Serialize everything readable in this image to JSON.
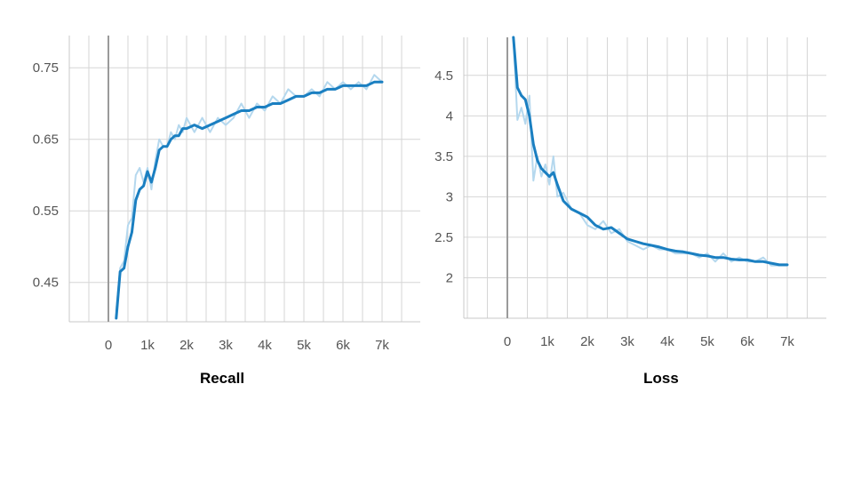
{
  "chart_data": [
    {
      "type": "line",
      "title": "Recall",
      "xlabel": "",
      "ylabel": "",
      "xlim": [
        -1000,
        8000
      ],
      "ylim": [
        0.395,
        0.795
      ],
      "xticks": [
        0,
        1000,
        2000,
        3000,
        4000,
        5000,
        6000,
        7000
      ],
      "xtick_labels": [
        "0",
        "1k",
        "2k",
        "3k",
        "4k",
        "5k",
        "6k",
        "7k"
      ],
      "yticks": [
        0.45,
        0.55,
        0.65,
        0.75
      ],
      "ytick_labels": [
        "0.45",
        "0.55",
        "0.65",
        "0.75"
      ],
      "grid": true,
      "colors": {
        "smoothed": "#1a7fc1",
        "raw": "#b5d8ee"
      },
      "series": [
        {
          "role": "raw",
          "x": [
            200,
            300,
            400,
            500,
            600,
            700,
            800,
            900,
            1000,
            1100,
            1200,
            1300,
            1400,
            1500,
            1600,
            1700,
            1800,
            1900,
            2000,
            2200,
            2400,
            2600,
            2800,
            3000,
            3200,
            3400,
            3600,
            3800,
            4000,
            4200,
            4400,
            4600,
            4800,
            5000,
            5200,
            5400,
            5600,
            5800,
            6000,
            6200,
            6400,
            6600,
            6800,
            7000
          ],
          "y": [
            0.41,
            0.47,
            0.48,
            0.53,
            0.54,
            0.6,
            0.61,
            0.59,
            0.61,
            0.58,
            0.62,
            0.65,
            0.64,
            0.64,
            0.66,
            0.65,
            0.67,
            0.66,
            0.68,
            0.66,
            0.68,
            0.66,
            0.68,
            0.67,
            0.68,
            0.7,
            0.68,
            0.7,
            0.69,
            0.71,
            0.7,
            0.72,
            0.71,
            0.71,
            0.72,
            0.71,
            0.73,
            0.72,
            0.73,
            0.72,
            0.73,
            0.72,
            0.74,
            0.73
          ]
        },
        {
          "role": "smoothed",
          "x": [
            200,
            300,
            400,
            500,
            600,
            700,
            800,
            900,
            1000,
            1100,
            1200,
            1300,
            1400,
            1500,
            1600,
            1700,
            1800,
            1900,
            2000,
            2200,
            2400,
            2600,
            2800,
            3000,
            3200,
            3400,
            3600,
            3800,
            4000,
            4200,
            4400,
            4600,
            4800,
            5000,
            5200,
            5400,
            5600,
            5800,
            6000,
            6200,
            6400,
            6600,
            6800,
            7000
          ],
          "y": [
            0.4,
            0.465,
            0.47,
            0.5,
            0.52,
            0.565,
            0.58,
            0.585,
            0.605,
            0.59,
            0.61,
            0.635,
            0.64,
            0.64,
            0.65,
            0.655,
            0.655,
            0.665,
            0.665,
            0.67,
            0.665,
            0.67,
            0.675,
            0.68,
            0.685,
            0.69,
            0.69,
            0.695,
            0.695,
            0.7,
            0.7,
            0.705,
            0.71,
            0.71,
            0.715,
            0.715,
            0.72,
            0.72,
            0.725,
            0.725,
            0.725,
            0.725,
            0.73,
            0.73
          ]
        }
      ]
    },
    {
      "type": "line",
      "title": "Loss",
      "xlabel": "",
      "ylabel": "",
      "xlim": [
        -1000,
        8000
      ],
      "ylim": [
        1.5,
        4.97
      ],
      "xticks": [
        0,
        1000,
        2000,
        3000,
        4000,
        5000,
        6000,
        7000
      ],
      "xtick_labels": [
        "0",
        "1k",
        "2k",
        "3k",
        "4k",
        "5k",
        "6k",
        "7k"
      ],
      "yticks": [
        2,
        2.5,
        3,
        3.5,
        4,
        4.5
      ],
      "ytick_labels": [
        "2",
        "2.5",
        "3",
        "3.5",
        "4",
        "4.5"
      ],
      "grid": true,
      "colors": {
        "smoothed": "#1a7fc1",
        "raw": "#b5d8ee"
      },
      "series": [
        {
          "role": "raw",
          "x": [
            150,
            250,
            350,
            450,
            550,
            650,
            750,
            850,
            950,
            1050,
            1150,
            1250,
            1400,
            1600,
            1800,
            2000,
            2200,
            2400,
            2600,
            2800,
            3000,
            3200,
            3400,
            3600,
            3800,
            4000,
            4200,
            4400,
            4600,
            4800,
            5000,
            5200,
            5400,
            5600,
            5800,
            6000,
            6200,
            6400,
            6600,
            6800,
            7000
          ],
          "y": [
            4.97,
            3.95,
            4.1,
            3.9,
            4.25,
            3.2,
            3.5,
            3.25,
            3.4,
            3.15,
            3.5,
            3.0,
            3.05,
            2.85,
            2.8,
            2.65,
            2.6,
            2.7,
            2.55,
            2.6,
            2.45,
            2.4,
            2.35,
            2.4,
            2.35,
            2.35,
            2.3,
            2.3,
            2.3,
            2.25,
            2.3,
            2.2,
            2.3,
            2.2,
            2.25,
            2.2,
            2.2,
            2.25,
            2.15,
            2.15,
            2.15
          ]
        },
        {
          "role": "smoothed",
          "x": [
            150,
            250,
            350,
            450,
            550,
            650,
            750,
            850,
            950,
            1050,
            1150,
            1250,
            1400,
            1600,
            1800,
            2000,
            2200,
            2400,
            2600,
            2800,
            3000,
            3200,
            3400,
            3600,
            3800,
            4000,
            4200,
            4400,
            4600,
            4800,
            5000,
            5200,
            5400,
            5600,
            5800,
            6000,
            6200,
            6400,
            6600,
            6800,
            7000
          ],
          "y": [
            4.97,
            4.35,
            4.25,
            4.2,
            4.0,
            3.65,
            3.45,
            3.35,
            3.3,
            3.25,
            3.3,
            3.15,
            2.95,
            2.85,
            2.8,
            2.75,
            2.65,
            2.6,
            2.62,
            2.55,
            2.48,
            2.45,
            2.42,
            2.4,
            2.38,
            2.35,
            2.33,
            2.32,
            2.3,
            2.28,
            2.27,
            2.25,
            2.25,
            2.23,
            2.22,
            2.22,
            2.2,
            2.2,
            2.18,
            2.16,
            2.16
          ]
        }
      ]
    }
  ]
}
